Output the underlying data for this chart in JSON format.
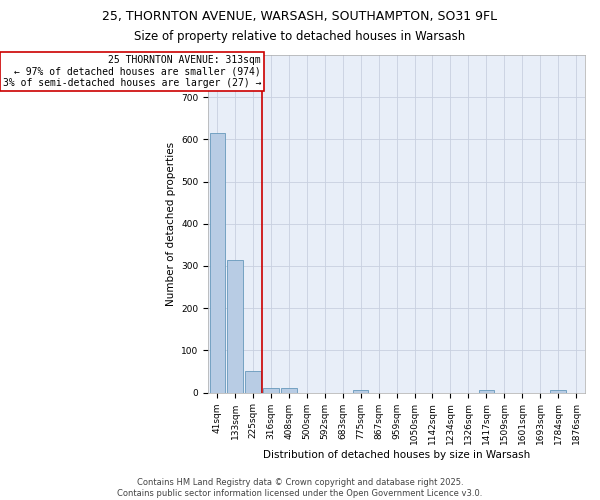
{
  "title_line1": "25, THORNTON AVENUE, WARSASH, SOUTHAMPTON, SO31 9FL",
  "title_line2": "Size of property relative to detached houses in Warsash",
  "xlabel": "Distribution of detached houses by size in Warsash",
  "ylabel": "Number of detached properties",
  "bg_color": "#e8eef8",
  "bar_color": "#b8cce4",
  "bar_edge_color": "#6699bb",
  "grid_color": "#c8d0e0",
  "categories": [
    "41sqm",
    "133sqm",
    "225sqm",
    "316sqm",
    "408sqm",
    "500sqm",
    "592sqm",
    "683sqm",
    "775sqm",
    "867sqm",
    "959sqm",
    "1050sqm",
    "1142sqm",
    "1234sqm",
    "1326sqm",
    "1417sqm",
    "1509sqm",
    "1601sqm",
    "1693sqm",
    "1784sqm",
    "1876sqm"
  ],
  "values": [
    615,
    315,
    50,
    10,
    10,
    0,
    0,
    0,
    5,
    0,
    0,
    0,
    0,
    0,
    0,
    5,
    0,
    0,
    0,
    5,
    0
  ],
  "red_line_x": 2.5,
  "annotation_text": "25 THORNTON AVENUE: 313sqm\n← 97% of detached houses are smaller (974)\n3% of semi-detached houses are larger (27) →",
  "property_line_color": "#cc0000",
  "annotation_box_color": "#cc0000",
  "ylim": [
    0,
    800
  ],
  "yticks": [
    0,
    100,
    200,
    300,
    400,
    500,
    600,
    700
  ],
  "footer_line1": "Contains HM Land Registry data © Crown copyright and database right 2025.",
  "footer_line2": "Contains public sector information licensed under the Open Government Licence v3.0.",
  "title_fontsize": 9,
  "subtitle_fontsize": 8.5,
  "axis_label_fontsize": 7.5,
  "tick_fontsize": 6.5,
  "annotation_fontsize": 7,
  "footer_fontsize": 6
}
